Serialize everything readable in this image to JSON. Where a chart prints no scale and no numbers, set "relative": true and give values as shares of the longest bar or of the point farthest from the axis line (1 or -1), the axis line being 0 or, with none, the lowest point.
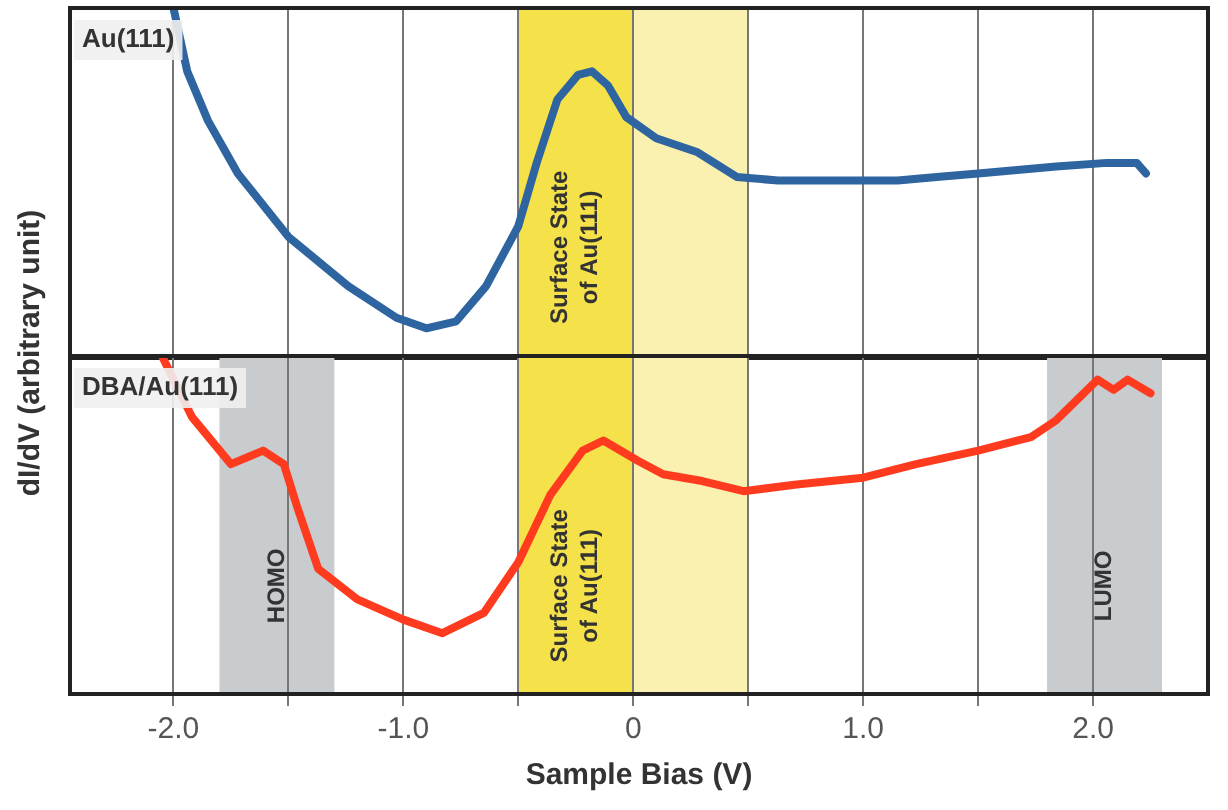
{
  "chart_data": [
    {
      "type": "line",
      "relative": true,
      "ylabel": "dI/dV (arbitrary unit)",
      "xlim": [
        -2.45,
        2.5
      ],
      "xticks": [
        {
          "value": -2,
          "label": null
        },
        {
          "value": -1.5,
          "label": null
        },
        {
          "value": -1,
          "label": null
        },
        {
          "value": -0.5,
          "label": null
        },
        {
          "value": 0,
          "label": null
        },
        {
          "value": 0.5,
          "label": null
        },
        {
          "value": 1,
          "label": null
        },
        {
          "value": 1.5,
          "label": null
        },
        {
          "value": 2,
          "label": null
        }
      ],
      "tick_labels": false,
      "grid": "x",
      "marker": "none",
      "series": [
        {
          "name": "Au(111)",
          "color": "#2e64a0",
          "x": [
            -2.0,
            -1.94,
            -1.85,
            -1.72,
            -1.5,
            -1.24,
            -1.03,
            -0.9,
            -0.77,
            -0.64,
            -0.5,
            -0.42,
            -0.33,
            -0.24,
            -0.18,
            -0.11,
            -0.03,
            0.1,
            0.28,
            0.45,
            0.63,
            0.89,
            1.15,
            1.32,
            1.5,
            1.67,
            1.84,
            2.06,
            2.19,
            2.23
          ],
          "values": [
            1.0,
            0.82,
            0.68,
            0.53,
            0.35,
            0.21,
            0.12,
            0.09,
            0.11,
            0.21,
            0.38,
            0.56,
            0.74,
            0.81,
            0.82,
            0.78,
            0.69,
            0.63,
            0.59,
            0.52,
            0.51,
            0.51,
            0.51,
            0.52,
            0.53,
            0.54,
            0.55,
            0.56,
            0.56,
            0.53
          ]
        }
      ],
      "bands": [
        {
          "axis": "x",
          "from": -0.5,
          "to": 0,
          "label": "Surface State\nof Au(111)",
          "color": "#f5e24a"
        },
        {
          "axis": "x",
          "from": 0,
          "to": 0.5,
          "color": "#faf1b0"
        }
      ]
    },
    {
      "type": "line",
      "relative": true,
      "xlabel": "Sample Bias (V)",
      "xlim": [
        -2.45,
        2.5
      ],
      "xticks": [
        {
          "value": -2,
          "label": "-2.0"
        },
        {
          "value": -1.5,
          "label": null
        },
        {
          "value": -1,
          "label": "-1.0"
        },
        {
          "value": -0.5,
          "label": null
        },
        0,
        {
          "value": 0.5,
          "label": null
        },
        {
          "value": 1,
          "label": "1.0"
        },
        {
          "value": 1.5,
          "label": null
        },
        {
          "value": 2,
          "label": "2.0"
        }
      ],
      "tick_labels": "x",
      "grid": "x",
      "marker": "none",
      "series": [
        {
          "name": "DBA/Au(111)",
          "color": "#ff3b1f",
          "x": [
            -2.05,
            -1.92,
            -1.75,
            -1.61,
            -1.52,
            -1.46,
            -1.37,
            -1.2,
            -1.0,
            -0.83,
            -0.65,
            -0.5,
            -0.36,
            -0.22,
            -0.13,
            0.02,
            0.13,
            0.3,
            0.48,
            0.71,
            1.0,
            1.23,
            1.5,
            1.73,
            1.84,
            1.93,
            2.02,
            2.09,
            2.15,
            2.25
          ],
          "values": [
            1.0,
            0.82,
            0.68,
            0.72,
            0.68,
            0.55,
            0.37,
            0.28,
            0.22,
            0.18,
            0.24,
            0.39,
            0.59,
            0.72,
            0.75,
            0.69,
            0.65,
            0.63,
            0.6,
            0.62,
            0.64,
            0.68,
            0.72,
            0.76,
            0.81,
            0.87,
            0.93,
            0.9,
            0.93,
            0.89
          ]
        }
      ],
      "bands": [
        {
          "axis": "x",
          "from": -0.5,
          "to": 0,
          "label": "Surface State\nof Au(111)",
          "color": "#f5e24a"
        },
        {
          "axis": "x",
          "from": 0,
          "to": 0.5,
          "color": "#faf1b0"
        },
        {
          "axis": "x",
          "from": -1.8,
          "to": -1.3,
          "label": "HOMO",
          "color": "#c9cccf"
        },
        {
          "axis": "x",
          "from": 1.8,
          "to": 2.3,
          "label": "LUMO",
          "color": "#c9cccf"
        }
      ]
    }
  ]
}
